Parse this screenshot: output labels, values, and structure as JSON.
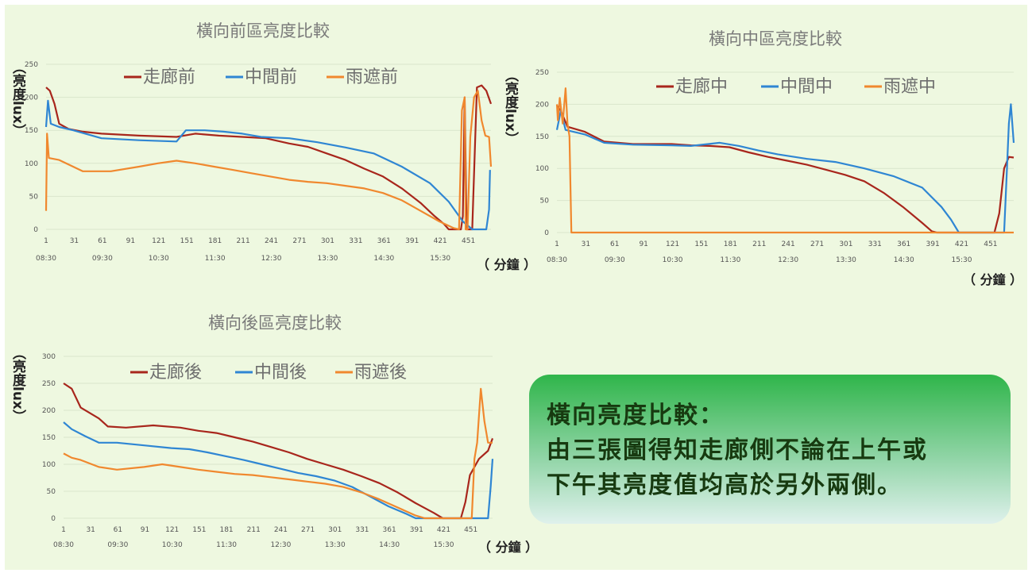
{
  "summary": {
    "heading": "橫向亮度比較：",
    "line1": "由三張圖得知走廊側不論在上午或",
    "line2": "下午其亮度值均高於另外兩側。"
  },
  "colors": {
    "corridor": "#a8261c",
    "middle": "#2f86d3",
    "rain": "#f0882e"
  },
  "chart_data": [
    {
      "type": "line",
      "title": "橫向前區亮度比較",
      "ylabel": "（亮度lux）",
      "xunit": "（ 分鐘 ）",
      "ylim": [
        0,
        250
      ],
      "yticks": [
        0,
        50,
        100,
        150,
        200,
        250
      ],
      "yticklabels": [
        "0",
        "50",
        "100",
        "150",
        "200",
        "250"
      ],
      "xlim": [
        1,
        475
      ],
      "xticks": [
        1,
        31,
        61,
        91,
        121,
        151,
        181,
        211,
        241,
        271,
        301,
        331,
        361,
        391,
        421,
        451
      ],
      "time_labels": [
        "08:30",
        "09:30",
        "10:30",
        "11:30",
        "12:30",
        "13:30",
        "14:30",
        "15:30"
      ],
      "series": [
        {
          "name": "走廊前",
          "color": "#a8261c",
          "points": [
            [
              1,
              215
            ],
            [
              5,
              210
            ],
            [
              10,
              190
            ],
            [
              15,
              160
            ],
            [
              25,
              152
            ],
            [
              40,
              148
            ],
            [
              60,
              145
            ],
            [
              100,
              142
            ],
            [
              140,
              140
            ],
            [
              160,
              145
            ],
            [
              185,
              142
            ],
            [
              210,
              140
            ],
            [
              235,
              138
            ],
            [
              260,
              130
            ],
            [
              280,
              125
            ],
            [
              300,
              115
            ],
            [
              320,
              105
            ],
            [
              340,
              92
            ],
            [
              360,
              80
            ],
            [
              380,
              62
            ],
            [
              400,
              40
            ],
            [
              415,
              20
            ],
            [
              425,
              8
            ],
            [
              430,
              0
            ],
            [
              443,
              0
            ],
            [
              445,
              20
            ],
            [
              447,
              200
            ],
            [
              449,
              0
            ],
            [
              455,
              0
            ],
            [
              460,
              215
            ],
            [
              465,
              218
            ],
            [
              470,
              210
            ],
            [
              475,
              190
            ]
          ]
        },
        {
          "name": "中間前",
          "color": "#2f86d3",
          "points": [
            [
              1,
              155
            ],
            [
              3,
              195
            ],
            [
              6,
              160
            ],
            [
              15,
              155
            ],
            [
              30,
              150
            ],
            [
              60,
              138
            ],
            [
              100,
              135
            ],
            [
              140,
              133
            ],
            [
              150,
              150
            ],
            [
              170,
              150
            ],
            [
              190,
              148
            ],
            [
              210,
              145
            ],
            [
              230,
              140
            ],
            [
              260,
              138
            ],
            [
              290,
              132
            ],
            [
              320,
              124
            ],
            [
              350,
              115
            ],
            [
              380,
              95
            ],
            [
              410,
              70
            ],
            [
              430,
              42
            ],
            [
              445,
              12
            ],
            [
              455,
              0
            ],
            [
              470,
              0
            ],
            [
              473,
              30
            ],
            [
              474,
              90
            ]
          ]
        },
        {
          "name": "雨遮前",
          "color": "#f0882e",
          "points": [
            [
              1,
              28
            ],
            [
              2,
              145
            ],
            [
              4,
              108
            ],
            [
              15,
              105
            ],
            [
              40,
              88
            ],
            [
              70,
              88
            ],
            [
              100,
              95
            ],
            [
              120,
              100
            ],
            [
              140,
              104
            ],
            [
              160,
              100
            ],
            [
              180,
              95
            ],
            [
              200,
              90
            ],
            [
              220,
              85
            ],
            [
              240,
              80
            ],
            [
              260,
              75
            ],
            [
              280,
              72
            ],
            [
              300,
              70
            ],
            [
              320,
              66
            ],
            [
              340,
              62
            ],
            [
              360,
              55
            ],
            [
              380,
              44
            ],
            [
              400,
              28
            ],
            [
              420,
              12
            ],
            [
              435,
              2
            ],
            [
              441,
              0
            ],
            [
              444,
              180
            ],
            [
              447,
              200
            ],
            [
              448,
              0
            ],
            [
              450,
              0
            ],
            [
              453,
              140
            ],
            [
              457,
              200
            ],
            [
              461,
              210
            ],
            [
              465,
              165
            ],
            [
              469,
              142
            ],
            [
              473,
              140
            ],
            [
              475,
              95
            ]
          ]
        }
      ]
    },
    {
      "type": "line",
      "title": "橫向中區亮度比較",
      "ylabel": "（亮度lux）",
      "xunit": "（ 分鐘 ）",
      "ylim": [
        0,
        250
      ],
      "yticks": [
        0,
        50,
        100,
        150,
        200,
        250
      ],
      "yticklabels": [
        "0",
        "50",
        "100",
        "150",
        "200",
        "250"
      ],
      "xlim": [
        1,
        475
      ],
      "xticks": [
        1,
        31,
        61,
        91,
        121,
        151,
        181,
        211,
        241,
        271,
        301,
        331,
        361,
        391,
        421,
        451
      ],
      "time_labels": [
        "08:30",
        "09:30",
        "10:30",
        "11:30",
        "12:30",
        "13:30",
        "14:30",
        "15:30"
      ],
      "series": [
        {
          "name": "走廊中",
          "color": "#a8261c",
          "points": [
            [
              1,
              198
            ],
            [
              5,
              190
            ],
            [
              12,
              165
            ],
            [
              30,
              157
            ],
            [
              50,
              142
            ],
            [
              80,
              138
            ],
            [
              120,
              138
            ],
            [
              140,
              136
            ],
            [
              160,
              135
            ],
            [
              180,
              133
            ],
            [
              200,
              125
            ],
            [
              220,
              118
            ],
            [
              240,
              112
            ],
            [
              260,
              106
            ],
            [
              280,
              98
            ],
            [
              300,
              90
            ],
            [
              320,
              80
            ],
            [
              340,
              62
            ],
            [
              360,
              40
            ],
            [
              380,
              15
            ],
            [
              390,
              2
            ],
            [
              395,
              0
            ],
            [
              455,
              0
            ],
            [
              460,
              30
            ],
            [
              465,
              100
            ],
            [
              470,
              118
            ],
            [
              475,
              117
            ]
          ]
        },
        {
          "name": "中間中",
          "color": "#2f86d3",
          "points": [
            [
              1,
              160
            ],
            [
              5,
              190
            ],
            [
              10,
              160
            ],
            [
              30,
              153
            ],
            [
              50,
              140
            ],
            [
              80,
              137
            ],
            [
              120,
              136
            ],
            [
              140,
              135
            ],
            [
              170,
              140
            ],
            [
              190,
              135
            ],
            [
              210,
              128
            ],
            [
              230,
              122
            ],
            [
              260,
              115
            ],
            [
              290,
              110
            ],
            [
              320,
              100
            ],
            [
              350,
              88
            ],
            [
              380,
              70
            ],
            [
              400,
              40
            ],
            [
              410,
              20
            ],
            [
              418,
              0
            ],
            [
              465,
              0
            ],
            [
              468,
              100
            ],
            [
              470,
              170
            ],
            [
              472,
              200
            ],
            [
              475,
              140
            ]
          ]
        },
        {
          "name": "雨遮中",
          "color": "#f0882e",
          "points": [
            [
              1,
              200
            ],
            [
              2,
              175
            ],
            [
              4,
              210
            ],
            [
              7,
              170
            ],
            [
              10,
              225
            ],
            [
              12,
              170
            ],
            [
              14,
              150
            ],
            [
              16,
              0
            ],
            [
              475,
              0
            ]
          ]
        }
      ]
    },
    {
      "type": "line",
      "title": "橫向後區亮度比較",
      "ylabel": "（亮度lux）",
      "xunit": "（ 分鐘 ）",
      "ylim": [
        0,
        300
      ],
      "yticks": [
        0,
        50,
        100,
        150,
        200,
        250,
        300
      ],
      "yticklabels": [
        "0",
        "50",
        "100",
        "150",
        "200",
        "250",
        "300"
      ],
      "xlim": [
        1,
        475
      ],
      "xticks": [
        1,
        31,
        61,
        91,
        121,
        151,
        181,
        211,
        241,
        271,
        301,
        331,
        361,
        391,
        421,
        451
      ],
      "time_labels": [
        "08:30",
        "09:30",
        "10:30",
        "11:30",
        "12:30",
        "13:30",
        "14:30",
        "15:30"
      ],
      "series": [
        {
          "name": "走廊後",
          "color": "#a8261c",
          "points": [
            [
              1,
              250
            ],
            [
              10,
              240
            ],
            [
              20,
              205
            ],
            [
              40,
              185
            ],
            [
              50,
              170
            ],
            [
              70,
              168
            ],
            [
              100,
              172
            ],
            [
              130,
              168
            ],
            [
              150,
              162
            ],
            [
              170,
              158
            ],
            [
              190,
              150
            ],
            [
              210,
              142
            ],
            [
              230,
              132
            ],
            [
              250,
              122
            ],
            [
              270,
              110
            ],
            [
              290,
              100
            ],
            [
              310,
              90
            ],
            [
              330,
              78
            ],
            [
              350,
              65
            ],
            [
              370,
              48
            ],
            [
              390,
              28
            ],
            [
              410,
              10
            ],
            [
              420,
              0
            ],
            [
              440,
              0
            ],
            [
              445,
              30
            ],
            [
              450,
              80
            ],
            [
              460,
              110
            ],
            [
              470,
              125
            ],
            [
              475,
              148
            ]
          ]
        },
        {
          "name": "中間後",
          "color": "#2f86d3",
          "points": [
            [
              1,
              178
            ],
            [
              10,
              165
            ],
            [
              25,
              152
            ],
            [
              40,
              140
            ],
            [
              60,
              140
            ],
            [
              90,
              135
            ],
            [
              120,
              130
            ],
            [
              140,
              128
            ],
            [
              160,
              122
            ],
            [
              180,
              115
            ],
            [
              200,
              108
            ],
            [
              220,
              100
            ],
            [
              240,
              92
            ],
            [
              260,
              84
            ],
            [
              280,
              78
            ],
            [
              300,
              70
            ],
            [
              320,
              58
            ],
            [
              340,
              40
            ],
            [
              360,
              22
            ],
            [
              380,
              8
            ],
            [
              390,
              0
            ],
            [
              470,
              0
            ],
            [
              473,
              60
            ],
            [
              475,
              110
            ]
          ]
        },
        {
          "name": "雨遮後",
          "color": "#f0882e",
          "points": [
            [
              1,
              120
            ],
            [
              10,
              112
            ],
            [
              20,
              108
            ],
            [
              40,
              95
            ],
            [
              60,
              90
            ],
            [
              90,
              95
            ],
            [
              110,
              100
            ],
            [
              130,
              95
            ],
            [
              150,
              90
            ],
            [
              170,
              86
            ],
            [
              190,
              82
            ],
            [
              210,
              80
            ],
            [
              230,
              76
            ],
            [
              250,
              72
            ],
            [
              270,
              68
            ],
            [
              290,
              64
            ],
            [
              310,
              58
            ],
            [
              330,
              48
            ],
            [
              350,
              35
            ],
            [
              370,
              20
            ],
            [
              390,
              5
            ],
            [
              400,
              0
            ],
            [
              452,
              0
            ],
            [
              455,
              110
            ],
            [
              458,
              140
            ],
            [
              462,
              240
            ],
            [
              466,
              180
            ],
            [
              470,
              140
            ],
            [
              475,
              140
            ]
          ]
        }
      ]
    }
  ]
}
